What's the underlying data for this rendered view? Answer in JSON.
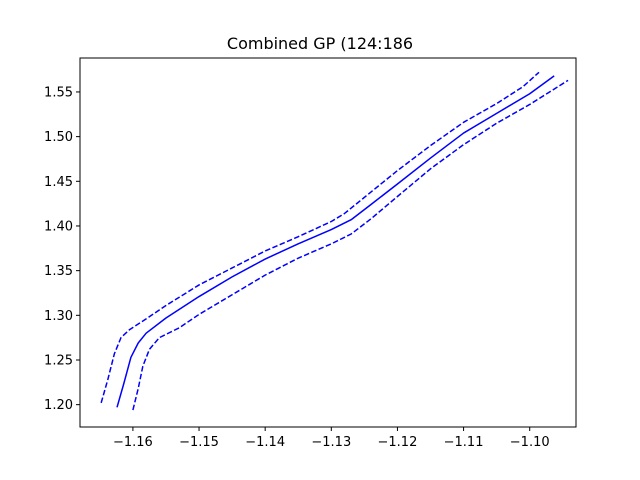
{
  "chart_data": {
    "type": "line",
    "title": "Combined GP (124:186",
    "xlabel": "",
    "ylabel": "",
    "xlim": [
      -1.168,
      -1.093
    ],
    "ylim": [
      1.175,
      1.588
    ],
    "grid": false,
    "legend": "none",
    "x_ticks": [
      -1.16,
      -1.15,
      -1.14,
      -1.13,
      -1.12,
      -1.11,
      -1.1
    ],
    "x_tick_labels": [
      "−1.16",
      "−1.15",
      "−1.14",
      "−1.13",
      "−1.12",
      "−1.11",
      "−1.10"
    ],
    "y_ticks": [
      1.2,
      1.25,
      1.3,
      1.35,
      1.4,
      1.45,
      1.5,
      1.55
    ],
    "y_tick_labels": [
      "1.20",
      "1.25",
      "1.30",
      "1.35",
      "1.40",
      "1.45",
      "1.50",
      "1.55"
    ],
    "series": [
      {
        "style": "dashed",
        "color": "#0000ff",
        "points": [
          [
            -1.1648,
            1.202
          ],
          [
            -1.1638,
            1.228
          ],
          [
            -1.1628,
            1.257
          ],
          [
            -1.1618,
            1.275
          ],
          [
            -1.1605,
            1.284
          ],
          [
            -1.158,
            1.296
          ],
          [
            -1.155,
            1.311
          ],
          [
            -1.15,
            1.334
          ],
          [
            -1.145,
            1.353
          ],
          [
            -1.14,
            1.372
          ],
          [
            -1.135,
            1.388
          ],
          [
            -1.13,
            1.405
          ],
          [
            -1.128,
            1.414
          ],
          [
            -1.125,
            1.432
          ],
          [
            -1.12,
            1.462
          ],
          [
            -1.115,
            1.49
          ],
          [
            -1.11,
            1.516
          ],
          [
            -1.105,
            1.537
          ],
          [
            -1.101,
            1.556
          ],
          [
            -1.0986,
            1.572
          ]
        ]
      },
      {
        "style": "solid",
        "color": "#0000ff",
        "points": [
          [
            -1.1624,
            1.197
          ],
          [
            -1.1614,
            1.223
          ],
          [
            -1.1603,
            1.253
          ],
          [
            -1.1592,
            1.269
          ],
          [
            -1.158,
            1.28
          ],
          [
            -1.155,
            1.297
          ],
          [
            -1.15,
            1.321
          ],
          [
            -1.145,
            1.343
          ],
          [
            -1.14,
            1.363
          ],
          [
            -1.135,
            1.38
          ],
          [
            -1.13,
            1.396
          ],
          [
            -1.127,
            1.407
          ],
          [
            -1.124,
            1.424
          ],
          [
            -1.12,
            1.447
          ],
          [
            -1.115,
            1.476
          ],
          [
            -1.11,
            1.504
          ],
          [
            -1.105,
            1.526
          ],
          [
            -1.1,
            1.548
          ],
          [
            -1.0963,
            1.568
          ]
        ]
      },
      {
        "style": "dashed",
        "color": "#0000ff",
        "points": [
          [
            -1.16,
            1.194
          ],
          [
            -1.1592,
            1.218
          ],
          [
            -1.1585,
            1.243
          ],
          [
            -1.1575,
            1.262
          ],
          [
            -1.156,
            1.275
          ],
          [
            -1.153,
            1.286
          ],
          [
            -1.15,
            1.301
          ],
          [
            -1.145,
            1.323
          ],
          [
            -1.14,
            1.345
          ],
          [
            -1.135,
            1.364
          ],
          [
            -1.13,
            1.38
          ],
          [
            -1.127,
            1.391
          ],
          [
            -1.124,
            1.408
          ],
          [
            -1.12,
            1.433
          ],
          [
            -1.115,
            1.464
          ],
          [
            -1.11,
            1.491
          ],
          [
            -1.105,
            1.515
          ],
          [
            -1.1,
            1.536
          ],
          [
            -1.0942,
            1.563
          ]
        ]
      }
    ]
  }
}
